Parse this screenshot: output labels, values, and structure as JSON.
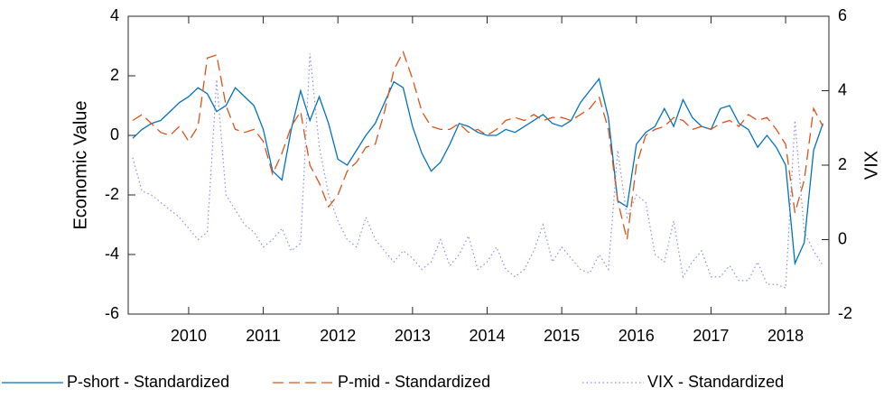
{
  "chart_data": {
    "type": "line",
    "ylabel": "Economic Value",
    "y2label": "VIX",
    "x": [
      2009.25,
      2009.375,
      2009.5,
      2009.625,
      2009.75,
      2009.875,
      2010,
      2010.125,
      2010.25,
      2010.375,
      2010.5,
      2010.625,
      2010.75,
      2010.875,
      2011,
      2011.125,
      2011.25,
      2011.375,
      2011.5,
      2011.625,
      2011.75,
      2011.875,
      2012,
      2012.125,
      2012.25,
      2012.375,
      2012.5,
      2012.625,
      2012.75,
      2012.875,
      2013,
      2013.125,
      2013.25,
      2013.375,
      2013.5,
      2013.625,
      2013.75,
      2013.875,
      2014,
      2014.125,
      2014.25,
      2014.375,
      2014.5,
      2014.625,
      2014.75,
      2014.875,
      2015,
      2015.125,
      2015.25,
      2015.375,
      2015.5,
      2015.625,
      2015.75,
      2015.875,
      2016,
      2016.125,
      2016.25,
      2016.375,
      2016.5,
      2016.625,
      2016.75,
      2016.875,
      2017,
      2017.125,
      2017.25,
      2017.375,
      2017.5,
      2017.625,
      2017.75,
      2017.875,
      2018,
      2018.125,
      2018.25,
      2018.375,
      2018.5
    ],
    "series": [
      {
        "name": "P-short - Standardized",
        "color": "#0072bd",
        "style": "solid",
        "axis": "y",
        "values": [
          -0.1,
          0.2,
          0.4,
          0.5,
          0.8,
          1.1,
          1.3,
          1.6,
          1.4,
          0.8,
          1.0,
          1.6,
          1.3,
          1.0,
          0.2,
          -1.2,
          -1.5,
          0.2,
          1.5,
          0.5,
          1.3,
          0.4,
          -0.8,
          -1.0,
          -0.5,
          0.0,
          0.4,
          1.1,
          1.8,
          1.6,
          0.3,
          -0.6,
          -1.2,
          -0.9,
          -0.3,
          0.4,
          0.3,
          0.1,
          0.0,
          0.0,
          0.2,
          0.1,
          0.3,
          0.5,
          0.7,
          0.4,
          0.3,
          0.5,
          1.1,
          1.5,
          1.9,
          0.6,
          -2.2,
          -2.4,
          -0.3,
          0.1,
          0.3,
          0.9,
          0.3,
          1.2,
          0.6,
          0.3,
          0.2,
          0.9,
          1.0,
          0.4,
          0.2,
          -0.4,
          0.0,
          -0.4,
          -1.0,
          -4.3,
          -3.6,
          -0.5,
          0.4
        ]
      },
      {
        "name": "P-mid - Standardized",
        "color": "#d95319",
        "style": "dashed",
        "axis": "y",
        "values": [
          0.5,
          0.7,
          0.4,
          0.1,
          0.0,
          0.3,
          -0.2,
          0.3,
          2.6,
          2.7,
          1.0,
          0.2,
          0.1,
          0.2,
          -0.2,
          -1.3,
          -0.6,
          0.3,
          0.8,
          -1.0,
          -1.6,
          -2.4,
          -2.0,
          -1.2,
          -0.9,
          -0.4,
          -0.3,
          0.8,
          2.2,
          2.8,
          1.9,
          0.8,
          0.3,
          0.2,
          0.2,
          0.4,
          0.1,
          0.2,
          0.0,
          0.2,
          0.5,
          0.6,
          0.5,
          0.7,
          0.5,
          0.6,
          0.6,
          0.5,
          0.7,
          0.9,
          1.3,
          0.2,
          -2.2,
          -3.5,
          -1.0,
          0.0,
          0.2,
          0.3,
          0.6,
          0.5,
          0.2,
          0.3,
          0.2,
          0.4,
          0.5,
          0.3,
          0.7,
          0.5,
          0.6,
          0.2,
          -0.3,
          -2.6,
          -1.5,
          0.9,
          0.3
        ]
      },
      {
        "name": "VIX - Standardized",
        "color": "#8c8ce6",
        "style": "dotted",
        "axis": "y2",
        "values": [
          2.2,
          1.3,
          1.2,
          1.0,
          0.8,
          0.6,
          0.3,
          0.0,
          0.2,
          4.3,
          1.2,
          0.8,
          0.4,
          0.2,
          -0.2,
          0.0,
          0.3,
          -0.3,
          -0.1,
          5.0,
          2.5,
          1.2,
          0.5,
          0.0,
          -0.2,
          0.6,
          0.0,
          -0.3,
          -0.6,
          -0.3,
          -0.5,
          -0.8,
          -0.6,
          0.0,
          -0.7,
          -0.4,
          0.1,
          -0.8,
          -0.6,
          -0.2,
          -0.8,
          -1.0,
          -0.8,
          -0.3,
          0.4,
          -0.6,
          -0.2,
          -0.5,
          -0.8,
          -0.9,
          -0.4,
          -0.8,
          2.4,
          0.6,
          1.2,
          1.0,
          -0.4,
          -0.6,
          0.5,
          -1.0,
          -0.6,
          -0.3,
          -1.0,
          -1.0,
          -0.7,
          -1.1,
          -1.1,
          -0.6,
          -1.2,
          -1.2,
          -1.3,
          3.2,
          0.2,
          -0.3,
          -0.7
        ]
      }
    ],
    "xlim": [
      2009.19,
      2018.58
    ],
    "xticks": [
      2010,
      2011,
      2012,
      2013,
      2014,
      2015,
      2016,
      2017,
      2018
    ],
    "ylim": [
      -6,
      4
    ],
    "yticks": [
      -6,
      -4,
      -2,
      0,
      2,
      4
    ],
    "y2lim": [
      -2,
      6
    ],
    "y2ticks": [
      -2,
      0,
      2,
      4,
      6
    ],
    "legend": "bottom"
  }
}
